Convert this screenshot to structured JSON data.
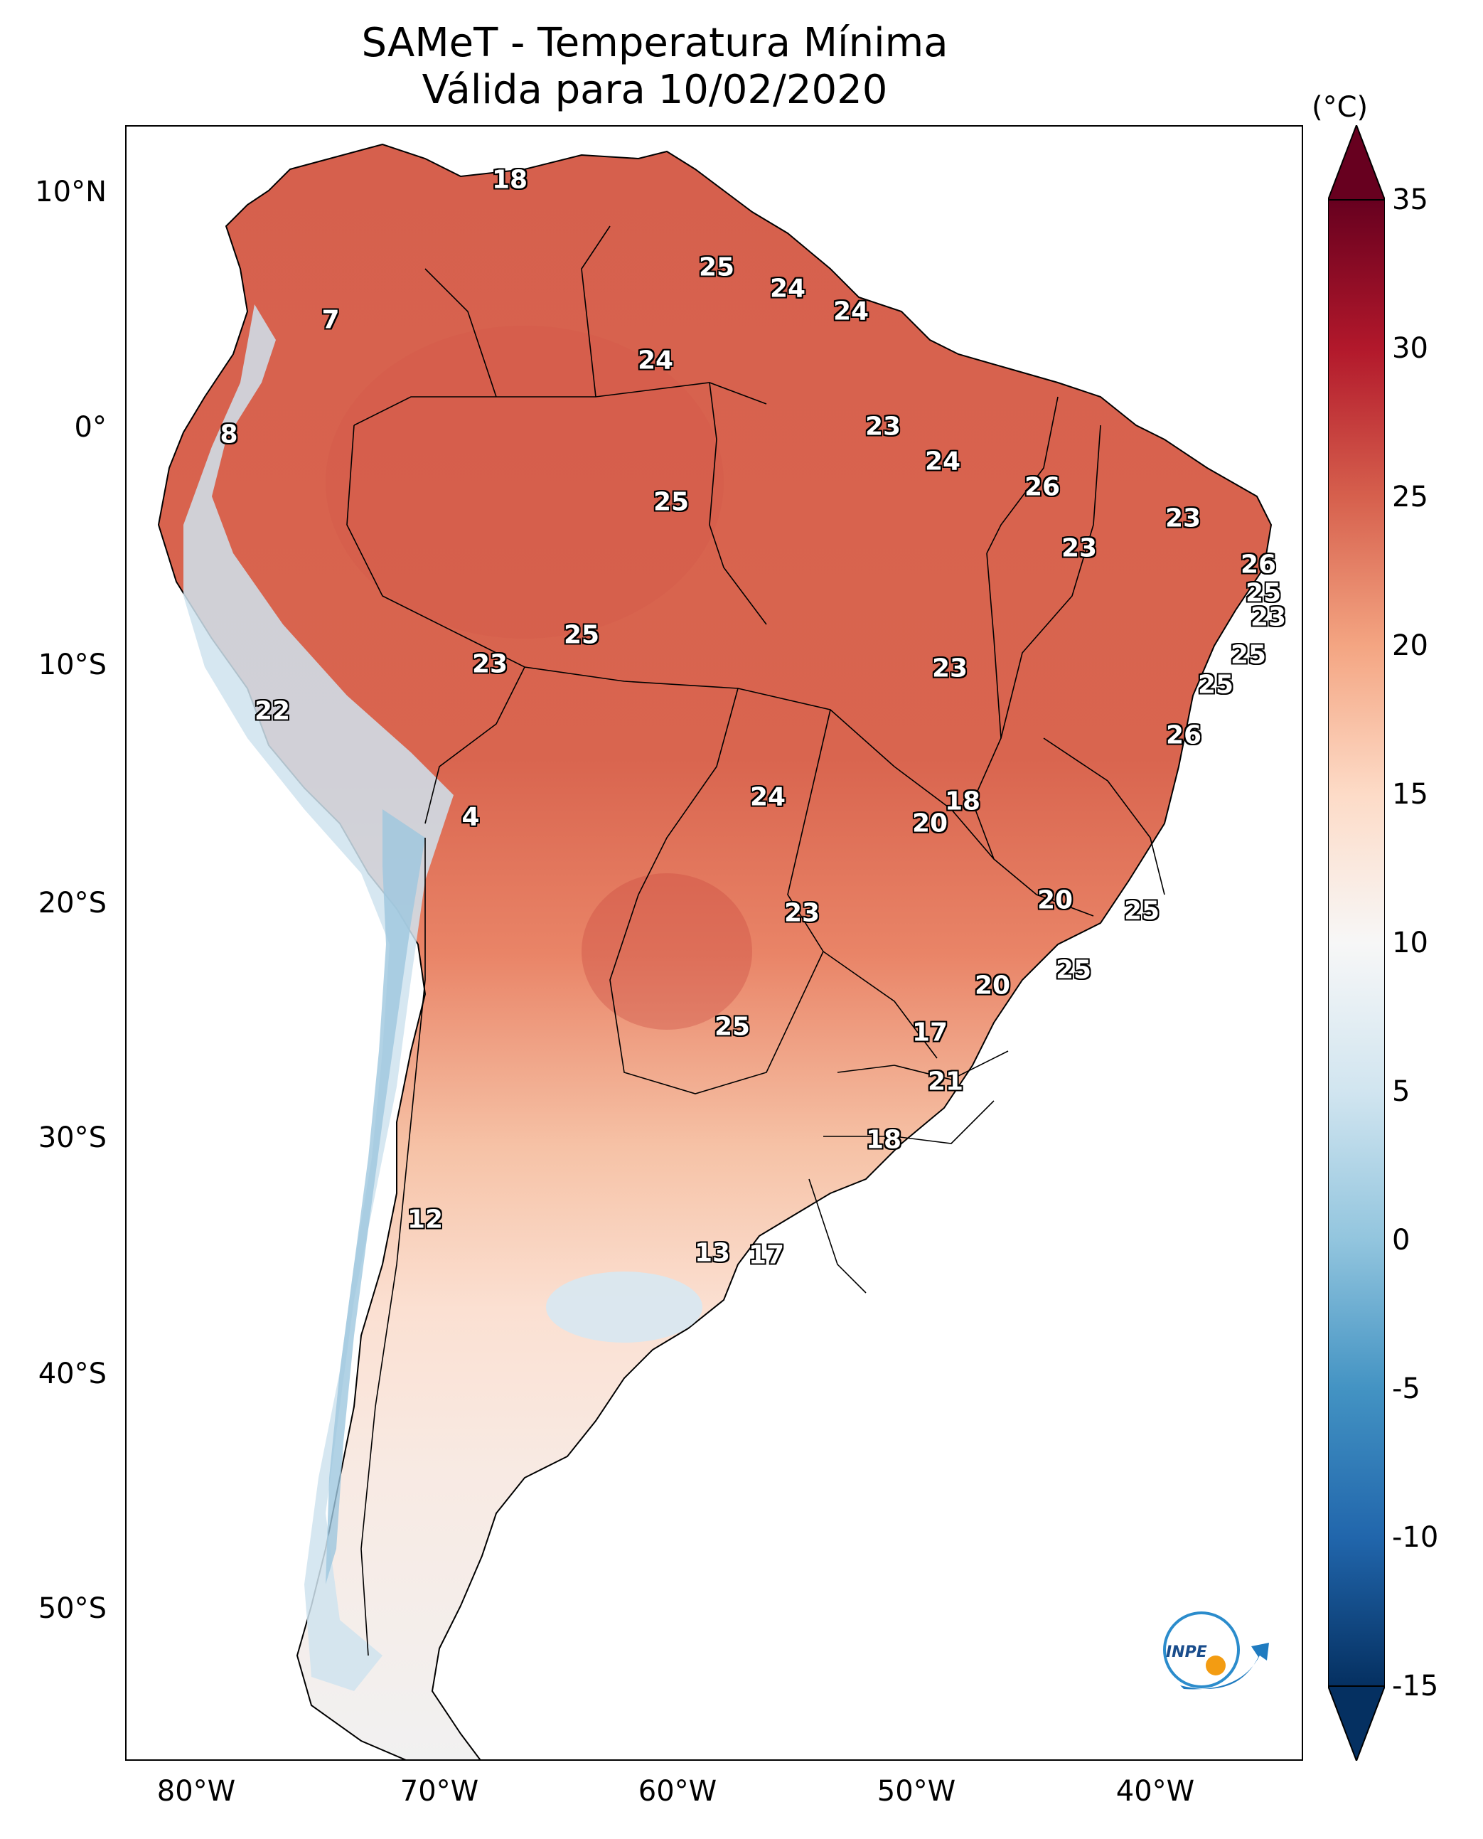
{
  "title": {
    "line1": "SAMeT - Temperatura Mínima",
    "line2": "Válida para 10/02/2020"
  },
  "axes": {
    "lat_ticks": [
      "10°N",
      "0°",
      "10°S",
      "20°S",
      "30°S",
      "40°S",
      "50°S"
    ],
    "lon_ticks": [
      "80°W",
      "70°W",
      "60°W",
      "50°W",
      "40°W"
    ]
  },
  "colorbar": {
    "unit": "(°C)",
    "ticks": [
      "35",
      "30",
      "25",
      "20",
      "15",
      "10",
      "5",
      "0",
      "-5",
      "-10",
      "-15"
    ],
    "min": -15,
    "max": 35,
    "colormap": "RdBu_r",
    "colors": [
      "#053061",
      "#2166ac",
      "#4393c3",
      "#92c5de",
      "#d1e5f0",
      "#f7f7f7",
      "#fddbc7",
      "#f4a582",
      "#d6604d",
      "#b2182b",
      "#67001f"
    ]
  },
  "logo": {
    "text": "INPE",
    "icon": "inpe-logo-icon"
  },
  "city_values": [
    "18",
    "7",
    "8",
    "25",
    "24",
    "24",
    "24",
    "23",
    "24",
    "26",
    "23",
    "25",
    "23",
    "26",
    "25",
    "23",
    "25",
    "23",
    "25",
    "22",
    "25",
    "23",
    "26",
    "4",
    "24",
    "18",
    "20",
    "20",
    "25",
    "23",
    "20",
    "25",
    "25",
    "17",
    "21",
    "18",
    "12",
    "13",
    "17"
  ]
}
